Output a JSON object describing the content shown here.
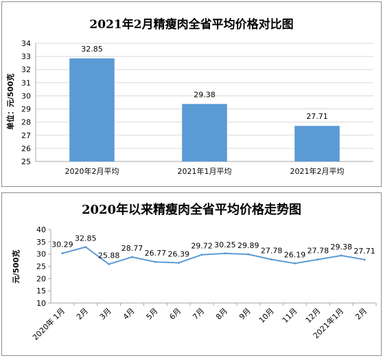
{
  "chart_data": [
    {
      "type": "bar",
      "title": "2021年2月精瘦肉全省平均价格对比图",
      "ylabel": "单位：元/500克",
      "xlabel": "",
      "categories": [
        "2020年2月平均",
        "2021年1月平均",
        "2021年2月平均"
      ],
      "values": [
        32.85,
        29.38,
        27.71
      ],
      "value_labels": [
        "32.85",
        "29.38",
        "27.71"
      ],
      "ylim": [
        25,
        34
      ],
      "yticks": [
        "25",
        "26",
        "27",
        "28",
        "29",
        "30",
        "31",
        "32",
        "33",
        "34"
      ],
      "grid": true,
      "legend": "none",
      "color": "#5b9bd5"
    },
    {
      "type": "line",
      "title": "2020年以来精瘦肉全省平均价格走势图",
      "ylabel": "元/500克",
      "xlabel": "",
      "categories": [
        "2020年 1月",
        "2月",
        "3月",
        "4月",
        "5月",
        "6月",
        "7月",
        "8月",
        "9月",
        "10月",
        "11月",
        "12月",
        "2021年1月",
        "2月"
      ],
      "values": [
        30.29,
        32.85,
        25.88,
        28.77,
        26.77,
        26.39,
        29.72,
        30.25,
        29.89,
        27.78,
        26.19,
        27.78,
        29.38,
        27.71
      ],
      "value_labels": [
        "30.29",
        "32.85",
        "25.88",
        "28.77",
        "26.77",
        "26.39",
        "29.72",
        "30.25",
        "29.89",
        "27.78",
        "26.19",
        "27.78",
        "29.38",
        "27.71"
      ],
      "ylim": [
        10,
        40
      ],
      "yticks": [
        "10",
        "15",
        "20",
        "25",
        "30",
        "35",
        "40"
      ],
      "grid": false,
      "legend": "none",
      "color": "#5b9bd5"
    }
  ]
}
